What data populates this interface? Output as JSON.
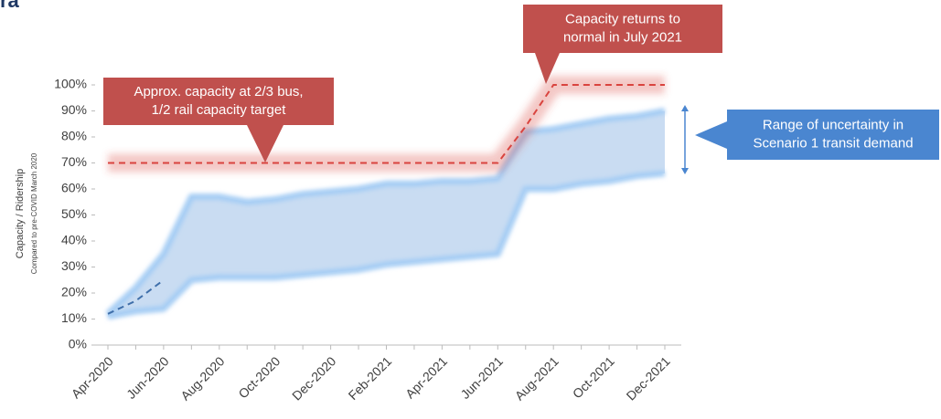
{
  "chart_data": {
    "type": "line",
    "title": "ra",
    "y_label": "Capacity / Ridership",
    "y_sublabel": "Compared to pre-COVID March 2020",
    "categories": [
      "Apr-2020",
      null,
      "Jun-2020",
      null,
      "Aug-2020",
      null,
      "Oct-2020",
      null,
      "Dec-2020",
      null,
      "Feb-2021",
      null,
      "Apr-2021",
      null,
      "Jun-2021",
      null,
      "Aug-2021",
      null,
      "Oct-2021",
      null,
      "Dec-2021"
    ],
    "ylim": [
      0,
      100
    ],
    "yticks": [
      {
        "value": 0,
        "label": "0%"
      },
      {
        "value": 10,
        "label": "10%"
      },
      {
        "value": 20,
        "label": "20%"
      },
      {
        "value": 30,
        "label": "30%"
      },
      {
        "value": 40,
        "label": "40%"
      },
      {
        "value": 50,
        "label": "50%"
      },
      {
        "value": 60,
        "label": "60%"
      },
      {
        "value": 70,
        "label": "70%"
      },
      {
        "value": 80,
        "label": "80%"
      },
      {
        "value": 90,
        "label": "90%"
      },
      {
        "value": 100,
        "label": "100%"
      }
    ],
    "band": {
      "color": "#c9dcf2",
      "edge_color": "#a6cdf4",
      "upper": [
        12,
        22,
        35,
        57,
        57,
        55,
        56,
        58,
        59,
        60,
        62,
        62,
        63,
        63,
        64,
        82,
        83,
        85,
        87,
        88,
        90
      ],
      "lower": [
        11,
        13,
        14,
        25,
        26,
        26,
        26,
        27,
        28,
        29,
        31,
        32,
        33,
        34,
        35,
        60,
        60,
        62,
        63,
        65,
        66
      ]
    },
    "series": [
      {
        "color": "#d9443f",
        "dashed": true,
        "values": [
          70,
          70,
          70,
          70,
          70,
          70,
          70,
          70,
          70,
          70,
          70,
          70,
          70,
          70,
          70,
          84,
          100,
          100,
          100,
          100,
          100
        ]
      },
      {
        "color": "#3f6faa",
        "dashed": true,
        "values": [
          12,
          17,
          25,
          null,
          null,
          null,
          null,
          null,
          null,
          null,
          null,
          null,
          null,
          null,
          null,
          null,
          null,
          null,
          null,
          null,
          null
        ]
      }
    ],
    "annotations": [
      {
        "lines": [
          "Approx. capacity at 2/3 bus,",
          "1/2 rail capacity target"
        ],
        "color": "#c0504d"
      },
      {
        "lines": [
          "Capacity returns to",
          "normal in July 2021"
        ],
        "color": "#c0504d"
      },
      {
        "lines": [
          "Range of uncertainty in",
          "Scenario 1 transit demand"
        ],
        "color": "#4a86d0"
      }
    ]
  }
}
